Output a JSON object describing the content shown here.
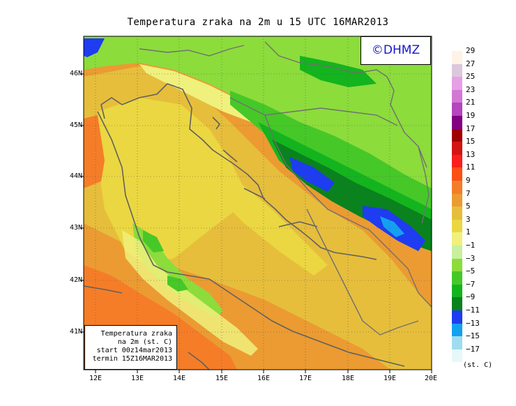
{
  "title": "Temperatura zraka na 2m u 15 UTC 16MAR2013",
  "logo": "©DHMZ",
  "info": {
    "line1": "Temperatura zraka",
    "line2": "na 2m (st. C)",
    "line3": "start 00z14mar2013",
    "line4": "termin 15Z16MAR2013"
  },
  "lat_ticks": [
    "46N",
    "45N",
    "44N",
    "43N",
    "42N",
    "41N"
  ],
  "lon_ticks": [
    "12E",
    "13E",
    "14E",
    "15E",
    "16E",
    "17E",
    "18E",
    "19E",
    "20E"
  ],
  "legend": {
    "bands": [
      {
        "color": "#fff2e6"
      },
      {
        "color": "#dcc8dc"
      },
      {
        "color": "#e6a0e6"
      },
      {
        "color": "#d278d2"
      },
      {
        "color": "#b446be"
      },
      {
        "color": "#820082"
      },
      {
        "color": "#a00000"
      },
      {
        "color": "#d21414"
      },
      {
        "color": "#fa1e1e"
      },
      {
        "color": "#fa5014"
      },
      {
        "color": "#f57d28"
      },
      {
        "color": "#eb9b32"
      },
      {
        "color": "#e6be3c"
      },
      {
        "color": "#ebd741"
      },
      {
        "color": "#f0f07d"
      },
      {
        "color": "#c8f0a0"
      },
      {
        "color": "#8cdc3c"
      },
      {
        "color": "#46c828"
      },
      {
        "color": "#14b41e"
      },
      {
        "color": "#0a821e"
      },
      {
        "color": "#1e3cf0"
      },
      {
        "color": "#14a0f0"
      },
      {
        "color": "#a0dcf0"
      },
      {
        "color": "#e6f8fa"
      },
      {
        "color": "#ffffff"
      }
    ],
    "labels": [
      "29",
      "27",
      "25",
      "23",
      "21",
      "19",
      "17",
      "15",
      "13",
      "11",
      "9",
      "7",
      "5",
      "3",
      "1",
      "−1",
      "−3",
      "−5",
      "−7",
      "−9",
      "−11",
      "−13",
      "−15",
      "−17"
    ],
    "units": "(st. C)"
  },
  "colors": {
    "warm_orange": "#eb9b32",
    "light_orange": "#e6be3c",
    "yellow": "#ebd741",
    "pale_yellow": "#f0f07d",
    "light_green": "#8cdc3c",
    "green": "#46c828",
    "mid_green": "#14b41e",
    "dark_green": "#0a821e",
    "blue": "#1e3cf0",
    "cyan": "#14a0f0",
    "deep_orange": "#f57d28"
  }
}
